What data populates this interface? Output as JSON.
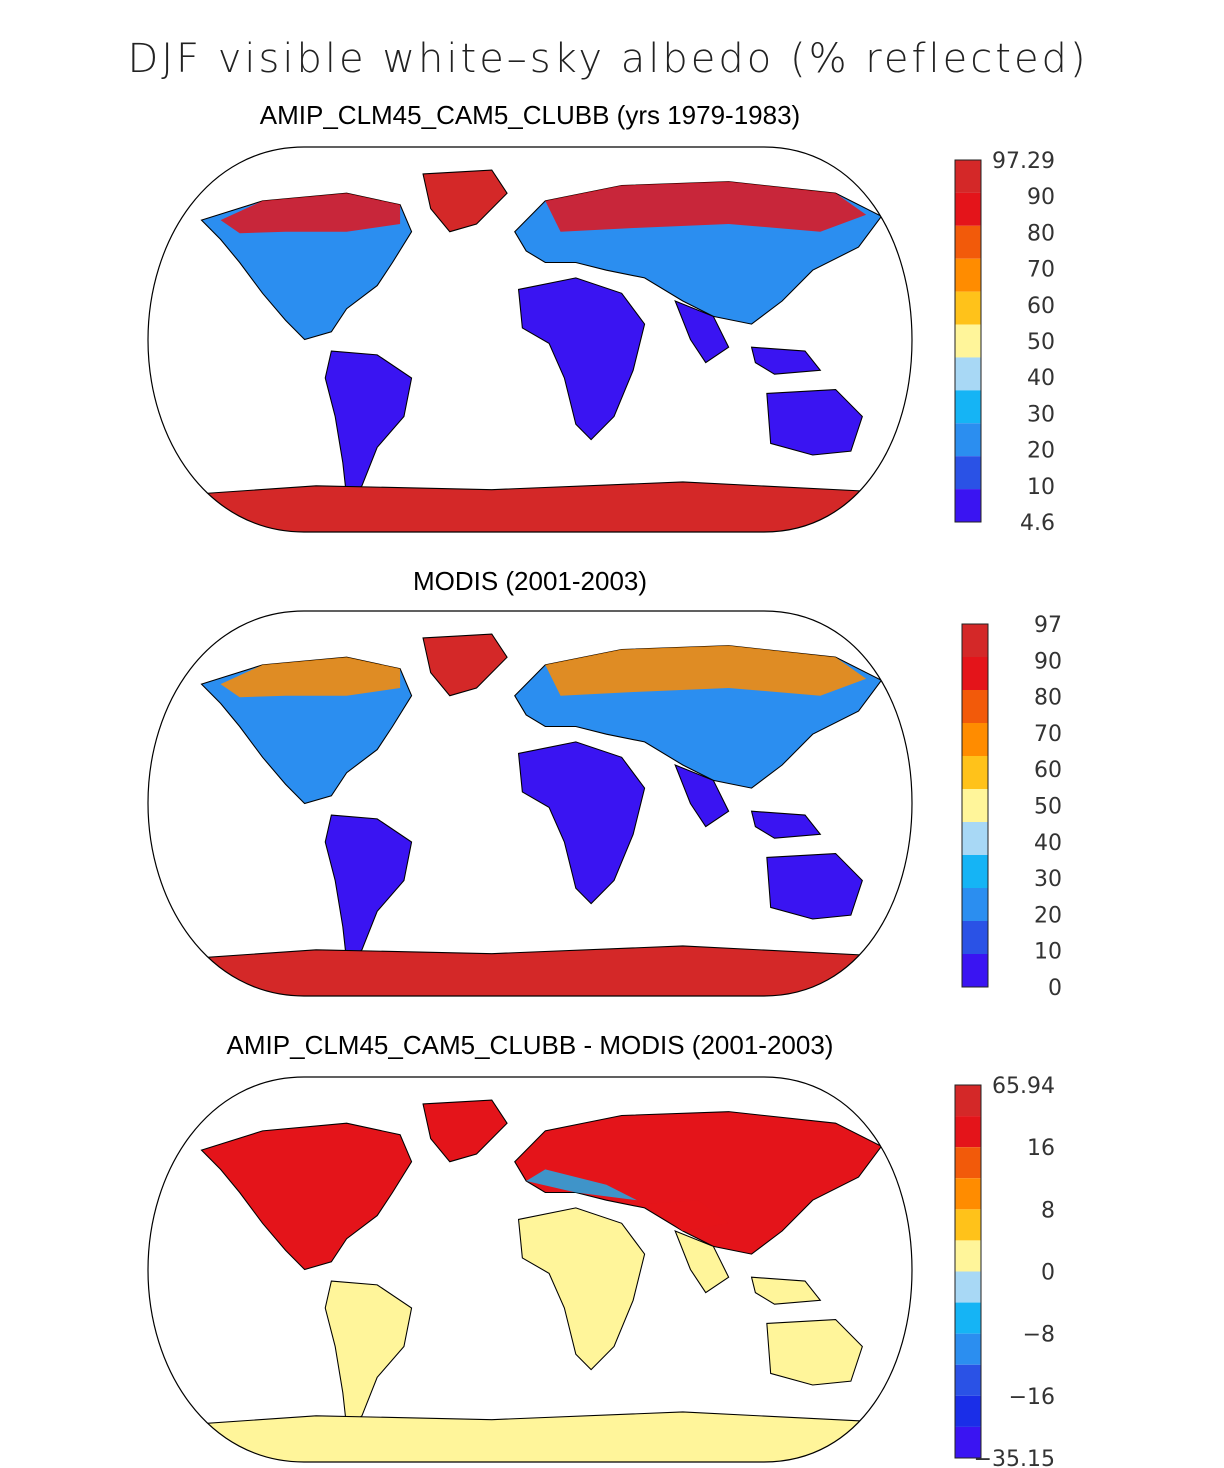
{
  "title": "DJF visible white–sky albedo (% reflected)",
  "colors": {
    "albedo": [
      "#3a14f2",
      "#2a52e6",
      "#2b8ef0",
      "#15b4f5",
      "#a8d8f5",
      "#fff59a",
      "#ffc21a",
      "#ff8c00",
      "#f25a0a",
      "#e4141a",
      "#d42828"
    ],
    "diff": [
      "#3a14f2",
      "#1a2ee8",
      "#2a52e6",
      "#2b8ef0",
      "#15b4f5",
      "#a8d8f5",
      "#fff59a",
      "#ffc21a",
      "#ff8c00",
      "#f25a0a",
      "#e4141a",
      "#d42828"
    ]
  },
  "panels": [
    {
      "title": "AMIP_CLM45_CAM5_CLUBB (yrs 1979-1983)",
      "colorbar_labels": [
        "97.29",
        "90",
        "80",
        "70",
        "60",
        "50",
        "40",
        "30",
        "20",
        "10",
        "4.6"
      ],
      "scheme": "model"
    },
    {
      "title": "MODIS (2001-2003)",
      "colorbar_labels": [
        "97",
        "90",
        "80",
        "70",
        "60",
        "50",
        "40",
        "30",
        "20",
        "10",
        "0"
      ],
      "scheme": "obs"
    },
    {
      "title": "AMIP_CLM45_CAM5_CLUBB - MODIS (2001-2003)",
      "colorbar_labels": [
        "65.94",
        "16",
        "8",
        "0",
        "−8",
        "−16",
        "−35.15"
      ],
      "scheme": "diff"
    }
  ]
}
